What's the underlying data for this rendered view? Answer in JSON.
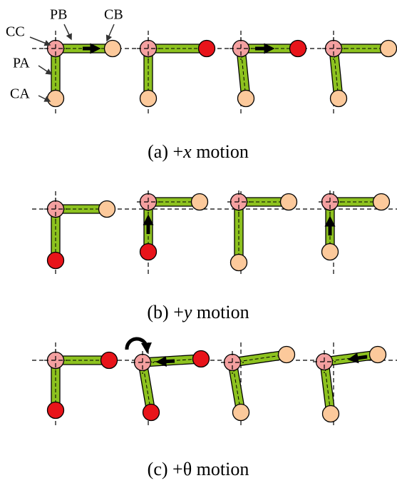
{
  "labels": {
    "cc": "CC",
    "pb": "PB",
    "cb": "CB",
    "pa": "PA",
    "ca": "CA"
  },
  "captions": [
    {
      "prefix": "(a) +",
      "variable": "x",
      "suffix": "motion"
    },
    {
      "prefix": "(b) +",
      "variable": "y",
      "suffix": "motion"
    },
    {
      "prefix": "(c) +θ",
      "variable": "",
      "suffix": "motion"
    }
  ]
}
